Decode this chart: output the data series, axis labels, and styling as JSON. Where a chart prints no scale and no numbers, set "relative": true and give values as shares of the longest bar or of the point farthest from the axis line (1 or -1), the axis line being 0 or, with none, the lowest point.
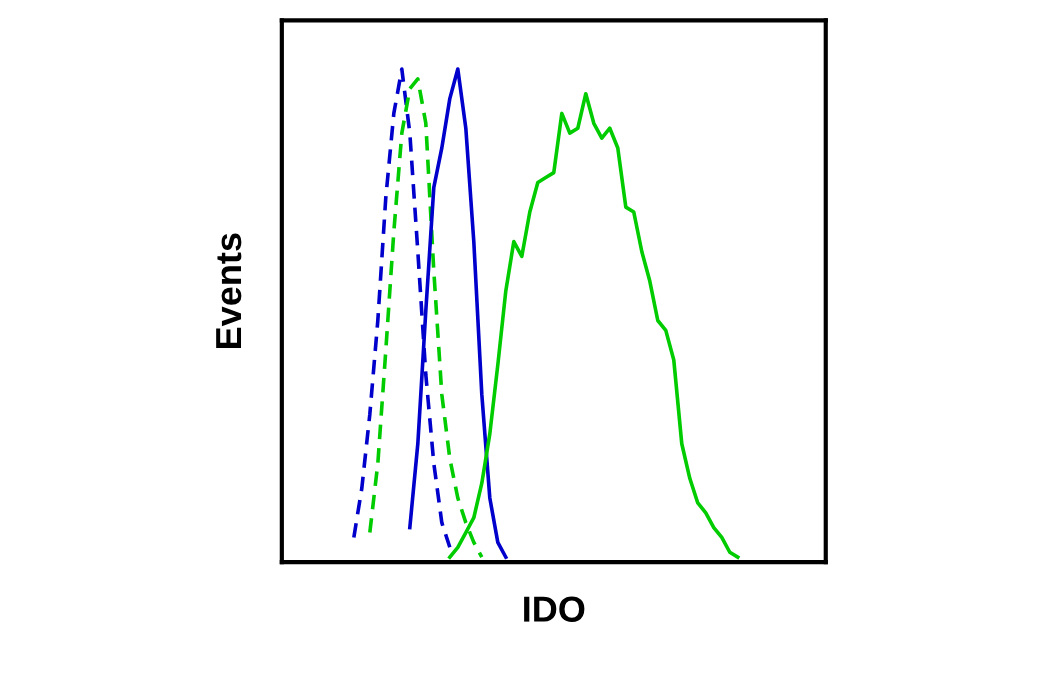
{
  "chart_data": {
    "type": "line",
    "xlabel": "IDO",
    "ylabel": "Events",
    "relative": true,
    "tick_labels": false,
    "marker": "none",
    "categories": [
      null,
      null,
      null,
      null,
      null,
      null,
      null,
      null,
      null,
      null,
      null,
      null,
      null,
      null,
      null,
      null,
      null,
      null,
      null,
      null,
      null,
      null,
      null,
      null,
      null,
      null,
      null,
      null,
      null,
      null,
      null,
      null,
      null,
      null,
      null,
      null,
      null,
      null,
      null,
      null,
      null,
      null,
      null,
      null,
      null,
      null,
      null,
      null,
      null,
      null,
      null,
      null,
      null,
      null,
      null,
      null,
      null,
      null,
      null,
      null,
      null,
      null,
      null,
      null,
      null,
      null,
      null,
      null,
      null
    ],
    "series": [
      {
        "color": "#0000cc",
        "line_style": "dashed",
        "values": [
          null,
          null,
          null,
          null,
          null,
          null,
          null,
          null,
          null,
          0.05,
          0.15,
          0.3,
          0.49,
          0.74,
          0.91,
          1.0,
          0.87,
          0.63,
          0.38,
          0.2,
          0.08,
          0.03,
          null,
          null,
          null,
          null,
          null,
          null,
          null,
          null,
          null,
          null,
          null,
          null,
          null,
          null,
          null,
          null,
          null,
          null,
          null,
          null,
          null,
          null,
          null,
          null,
          null,
          null,
          null,
          null,
          null,
          null,
          null,
          null,
          null,
          null,
          null,
          null,
          null,
          null,
          null,
          null,
          null,
          null,
          null,
          null,
          null,
          null,
          null
        ]
      },
      {
        "color": "#00cc00",
        "line_style": "dashed",
        "values": [
          null,
          null,
          null,
          null,
          null,
          null,
          null,
          null,
          null,
          null,
          null,
          0.06,
          0.2,
          0.43,
          0.67,
          0.87,
          0.96,
          0.98,
          0.89,
          0.59,
          0.34,
          0.21,
          0.13,
          0.08,
          0.04,
          0.01,
          null,
          null,
          null,
          null,
          null,
          null,
          null,
          null,
          null,
          null,
          null,
          null,
          null,
          null,
          null,
          null,
          null,
          null,
          null,
          null,
          null,
          null,
          null,
          null,
          null,
          null,
          null,
          null,
          null,
          null,
          null,
          null,
          null,
          null,
          null,
          null,
          null,
          null,
          null,
          null,
          null,
          null,
          null
        ]
      },
      {
        "color": "#0000cc",
        "line_style": "solid",
        "values": [
          null,
          null,
          null,
          null,
          null,
          null,
          null,
          null,
          null,
          null,
          null,
          null,
          null,
          null,
          null,
          null,
          0.07,
          0.24,
          0.51,
          0.76,
          0.84,
          0.94,
          1.0,
          0.88,
          0.65,
          0.34,
          0.13,
          0.04,
          0.01,
          null,
          null,
          null,
          null,
          null,
          null,
          null,
          null,
          null,
          null,
          null,
          null,
          null,
          null,
          null,
          null,
          null,
          null,
          null,
          null,
          null,
          null,
          null,
          null,
          null,
          null,
          null,
          null,
          null,
          null,
          null,
          null,
          null,
          null,
          null,
          null,
          null,
          null,
          null,
          null
        ]
      },
      {
        "color": "#00cc00",
        "line_style": "solid",
        "values": [
          null,
          null,
          null,
          null,
          null,
          null,
          null,
          null,
          null,
          null,
          null,
          null,
          null,
          null,
          null,
          null,
          null,
          null,
          null,
          null,
          null,
          0.01,
          0.03,
          0.06,
          0.09,
          0.16,
          0.26,
          0.4,
          0.55,
          0.65,
          0.62,
          0.71,
          0.77,
          0.78,
          0.79,
          0.91,
          0.87,
          0.88,
          0.95,
          0.89,
          0.86,
          0.88,
          0.84,
          0.72,
          0.71,
          0.63,
          0.57,
          0.49,
          0.47,
          0.41,
          0.24,
          0.17,
          0.12,
          0.1,
          0.07,
          0.05,
          0.02,
          0.01,
          null,
          null,
          null,
          null,
          null,
          null,
          null,
          null,
          null,
          null,
          null
        ]
      }
    ]
  }
}
